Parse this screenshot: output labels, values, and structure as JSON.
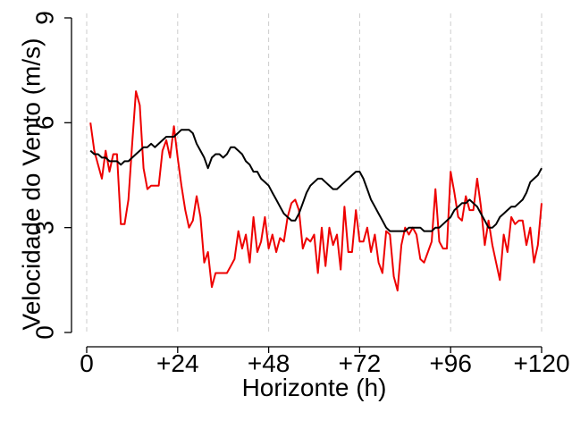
{
  "chart_data": {
    "type": "line",
    "xlabel": "Horizonte (h)",
    "ylabel": "Velocidade do Vento (m/s)",
    "xlim": [
      0,
      120
    ],
    "ylim": [
      0,
      9
    ],
    "x_ticks": [
      0,
      24,
      48,
      72,
      96,
      120
    ],
    "x_tick_labels": [
      "0",
      "+24",
      "+48",
      "+72",
      "+96",
      "+120"
    ],
    "y_ticks": [
      0,
      3,
      6,
      9
    ],
    "y_tick_labels": [
      "0",
      "3",
      "6",
      "9"
    ],
    "grid": "vertical dashed",
    "series": [
      {
        "color": "#ee0000",
        "x": [
          1,
          2,
          3,
          4,
          5,
          6,
          7,
          8,
          9,
          10,
          11,
          12,
          13,
          14,
          15,
          16,
          17,
          18,
          19,
          20,
          21,
          22,
          23,
          24,
          25,
          26,
          27,
          28,
          29,
          30,
          31,
          32,
          33,
          34,
          35,
          36,
          37,
          38,
          39,
          40,
          41,
          42,
          43,
          44,
          45,
          46,
          47,
          48,
          49,
          50,
          51,
          52,
          53,
          54,
          55,
          56,
          57,
          58,
          59,
          60,
          61,
          62,
          63,
          64,
          65,
          66,
          67,
          68,
          69,
          70,
          71,
          72,
          73,
          74,
          75,
          76,
          77,
          78,
          79,
          80,
          81,
          82,
          83,
          84,
          85,
          86,
          87,
          88,
          89,
          90,
          91,
          92,
          93,
          94,
          95,
          96,
          97,
          98,
          99,
          100,
          101,
          102,
          103,
          104,
          105,
          106,
          107,
          108,
          109,
          110,
          111,
          112,
          113,
          114,
          115,
          116,
          117,
          118,
          119,
          120
        ],
        "y": [
          6.0,
          5.2,
          4.8,
          4.4,
          5.2,
          4.6,
          5.1,
          5.1,
          3.1,
          3.1,
          3.8,
          5.4,
          6.9,
          6.5,
          4.7,
          4.1,
          4.2,
          4.2,
          4.2,
          5.2,
          5.5,
          5.0,
          5.9,
          5.0,
          4.2,
          3.5,
          3.0,
          3.2,
          3.9,
          3.3,
          2.0,
          2.3,
          1.3,
          1.7,
          1.7,
          1.7,
          1.7,
          1.9,
          2.1,
          2.9,
          2.4,
          2.8,
          2.0,
          3.3,
          2.3,
          2.6,
          3.3,
          2.4,
          2.8,
          2.3,
          2.7,
          2.6,
          3.3,
          3.7,
          3.8,
          3.5,
          2.4,
          2.7,
          2.6,
          2.8,
          1.7,
          3.0,
          1.9,
          3.0,
          2.5,
          2.8,
          1.8,
          3.6,
          2.3,
          2.3,
          3.5,
          2.6,
          2.6,
          3.0,
          2.3,
          2.8,
          2.0,
          1.7,
          2.9,
          2.8,
          1.6,
          1.2,
          2.5,
          3.0,
          2.8,
          3.0,
          2.8,
          2.1,
          2.0,
          2.3,
          2.6,
          4.1,
          2.6,
          2.4,
          2.4,
          4.6,
          4.0,
          3.3,
          3.2,
          3.9,
          3.5,
          3.5,
          4.4,
          3.6,
          2.5,
          3.2,
          2.5,
          2.0,
          1.5,
          2.8,
          2.3,
          3.3,
          3.1,
          3.2,
          3.2,
          2.5,
          3.0,
          2.0,
          2.5,
          3.7
        ]
      },
      {
        "color": "#000000",
        "x": [
          1,
          2,
          3,
          4,
          5,
          6,
          7,
          8,
          9,
          10,
          11,
          12,
          13,
          14,
          15,
          16,
          17,
          18,
          19,
          20,
          21,
          22,
          23,
          24,
          25,
          26,
          27,
          28,
          29,
          30,
          31,
          32,
          33,
          34,
          35,
          36,
          37,
          38,
          39,
          40,
          41,
          42,
          43,
          44,
          45,
          46,
          47,
          48,
          49,
          50,
          51,
          52,
          53,
          54,
          55,
          56,
          57,
          58,
          59,
          60,
          61,
          62,
          63,
          64,
          65,
          66,
          67,
          68,
          69,
          70,
          71,
          72,
          73,
          74,
          75,
          76,
          77,
          78,
          79,
          80,
          81,
          82,
          83,
          84,
          85,
          86,
          87,
          88,
          89,
          90,
          91,
          92,
          93,
          94,
          95,
          96,
          97,
          98,
          99,
          100,
          101,
          102,
          103,
          104,
          105,
          106,
          107,
          108,
          109,
          110,
          111,
          112,
          113,
          114,
          115,
          116,
          117,
          118,
          119,
          120
        ],
        "y": [
          5.2,
          5.1,
          5.1,
          5.0,
          5.0,
          4.9,
          4.9,
          4.9,
          4.8,
          4.9,
          4.9,
          5.0,
          5.1,
          5.2,
          5.3,
          5.3,
          5.4,
          5.3,
          5.4,
          5.5,
          5.6,
          5.6,
          5.6,
          5.7,
          5.8,
          5.8,
          5.8,
          5.7,
          5.4,
          5.2,
          5.0,
          4.7,
          5.0,
          5.1,
          5.1,
          5.0,
          5.1,
          5.3,
          5.3,
          5.2,
          5.1,
          4.9,
          4.8,
          4.6,
          4.6,
          4.4,
          4.3,
          4.2,
          4.0,
          3.8,
          3.6,
          3.4,
          3.3,
          3.2,
          3.2,
          3.4,
          3.7,
          4.0,
          4.2,
          4.3,
          4.4,
          4.4,
          4.3,
          4.2,
          4.1,
          4.1,
          4.2,
          4.3,
          4.4,
          4.5,
          4.6,
          4.6,
          4.4,
          4.1,
          3.8,
          3.6,
          3.4,
          3.2,
          3.0,
          2.9,
          2.9,
          2.9,
          2.9,
          2.9,
          3.0,
          3.0,
          3.0,
          3.0,
          2.9,
          2.9,
          2.9,
          3.0,
          3.0,
          3.1,
          3.2,
          3.3,
          3.5,
          3.6,
          3.7,
          3.7,
          3.8,
          3.7,
          3.6,
          3.4,
          3.2,
          3.0,
          3.0,
          3.1,
          3.3,
          3.4,
          3.5,
          3.6,
          3.6,
          3.7,
          3.8,
          4.0,
          4.3,
          4.4,
          4.5,
          4.7
        ]
      }
    ]
  }
}
